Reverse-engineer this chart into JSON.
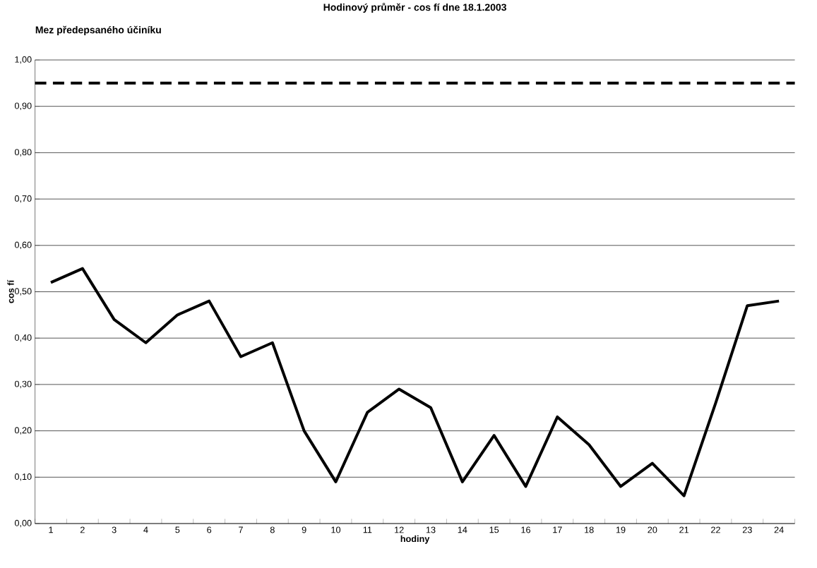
{
  "chart_data": {
    "type": "line",
    "title": "Hodinový průměr - cos fí dne 18.1.2003",
    "xlabel": "hodiny",
    "ylabel": "cos fí",
    "categories": [
      "1",
      "2",
      "3",
      "4",
      "5",
      "6",
      "7",
      "8",
      "9",
      "10",
      "11",
      "12",
      "13",
      "14",
      "15",
      "16",
      "17",
      "18",
      "19",
      "20",
      "21",
      "22",
      "23",
      "24"
    ],
    "values": [
      0.52,
      0.55,
      0.44,
      0.39,
      0.45,
      0.48,
      0.36,
      0.39,
      0.2,
      0.09,
      0.24,
      0.29,
      0.25,
      0.09,
      0.19,
      0.08,
      0.23,
      0.17,
      0.08,
      0.13,
      0.06,
      0.26,
      0.47,
      0.48
    ],
    "color": "#000000",
    "ylim": [
      0,
      1
    ],
    "yticks": [
      {
        "value": 0,
        "label": "0,00"
      },
      {
        "value": 0.1,
        "label": "0,10"
      },
      {
        "value": 0.2,
        "label": "0,20"
      },
      {
        "value": 0.3,
        "label": "0,30"
      },
      {
        "value": 0.4,
        "label": "0,40"
      },
      {
        "value": 0.5,
        "label": "0,50"
      },
      {
        "value": 0.6,
        "label": "0,60"
      },
      {
        "value": 0.7,
        "label": "0,70"
      },
      {
        "value": 0.8,
        "label": "0,80"
      },
      {
        "value": 0.9,
        "label": "0,90"
      },
      {
        "value": 1,
        "label": "1,00"
      }
    ],
    "grid": "y",
    "ref_lines": [
      {
        "axis": "y",
        "value": 0.95,
        "label": "Mez předepsaného účiníku",
        "color": "#000000",
        "line_style": "dashed"
      }
    ]
  }
}
